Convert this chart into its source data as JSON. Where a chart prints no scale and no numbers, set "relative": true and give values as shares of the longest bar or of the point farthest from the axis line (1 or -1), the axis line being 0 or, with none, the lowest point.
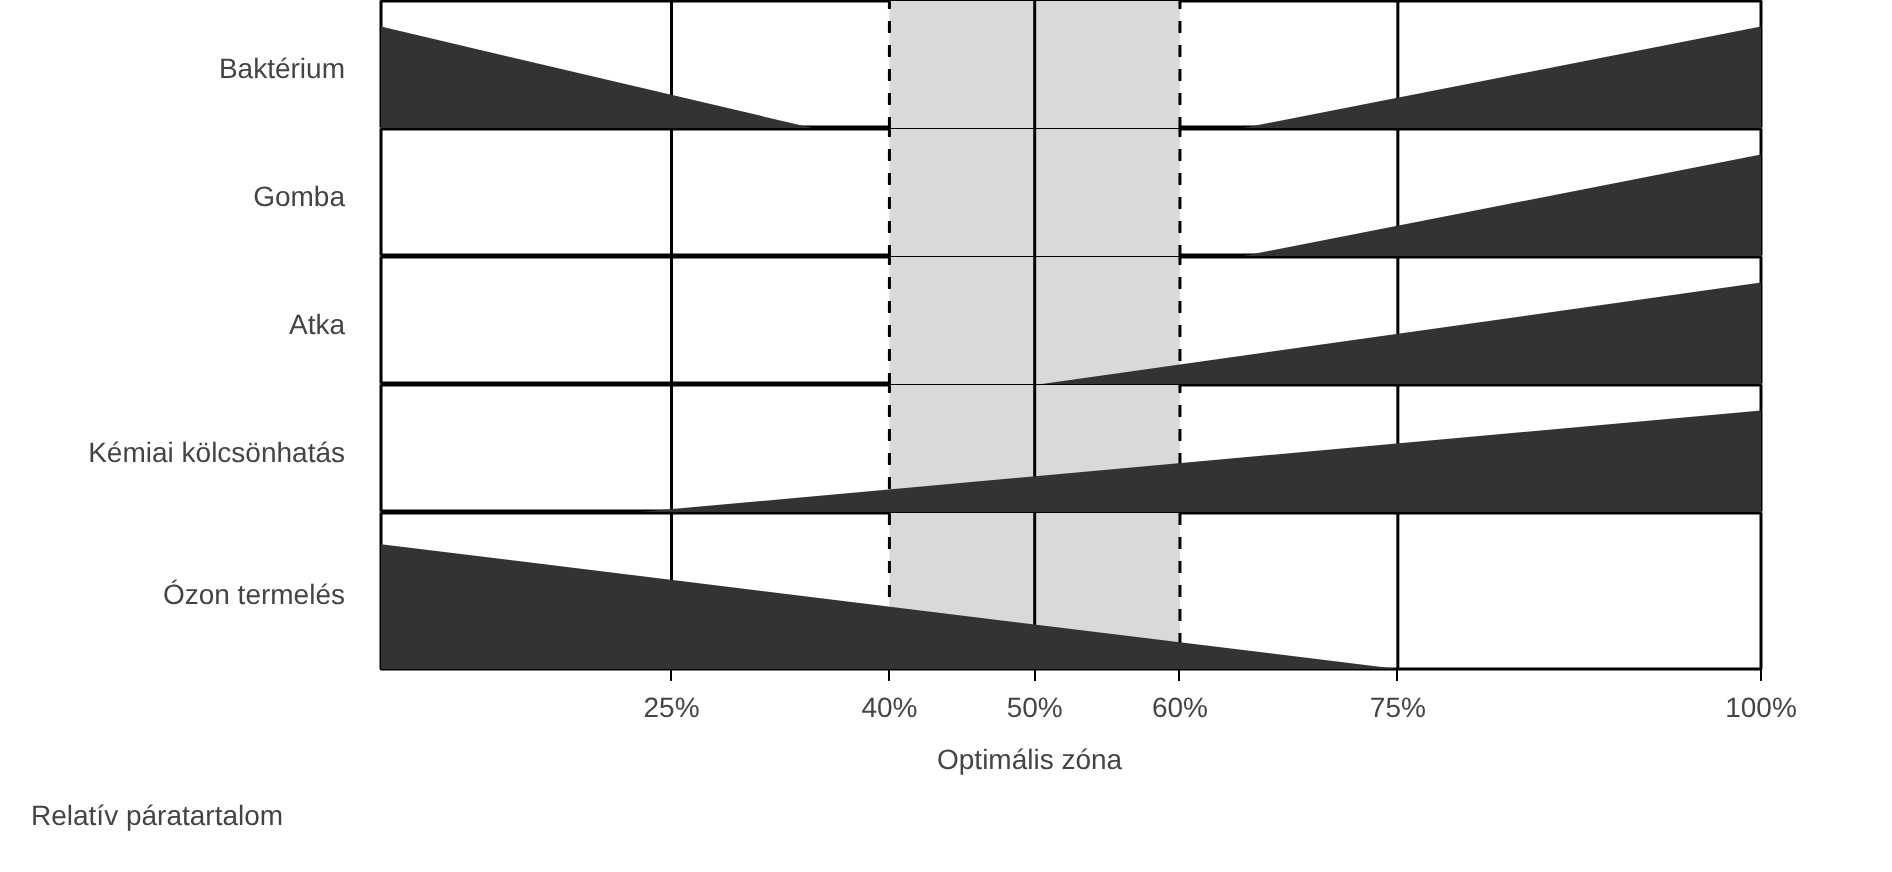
{
  "chart_data": [
    {
      "type": "area",
      "ylabel": "Baktérium",
      "relative": true,
      "x": [
        5,
        35,
        64,
        100
      ],
      "series": [
        {
          "color": "#333333",
          "values": [
            1,
            0,
            0,
            1
          ]
        }
      ],
      "xlim": [
        5,
        100
      ],
      "ref_lines": [
        {
          "axis": "x",
          "value": 25
        },
        {
          "axis": "x",
          "value": 50
        },
        {
          "axis": "x",
          "value": 75
        },
        {
          "axis": "x",
          "value": 40,
          "line_style": "dashed"
        },
        {
          "axis": "x",
          "value": 60,
          "line_style": "dashed"
        }
      ],
      "bands": [
        {
          "axis": "x",
          "from": 40,
          "to": 60,
          "color": "#d9d9d9"
        }
      ],
      "tick_labels": false,
      "grid": false
    },
    {
      "type": "area",
      "ylabel": "Gomba",
      "relative": true,
      "x": [
        5,
        64,
        100
      ],
      "series": [
        {
          "color": "#333333",
          "values": [
            0,
            0,
            1
          ]
        }
      ],
      "xlim": [
        5,
        100
      ],
      "ref_lines": [
        {
          "axis": "x",
          "value": 25
        },
        {
          "axis": "x",
          "value": 50
        },
        {
          "axis": "x",
          "value": 75
        },
        {
          "axis": "x",
          "value": 40,
          "line_style": "dashed"
        },
        {
          "axis": "x",
          "value": 60,
          "line_style": "dashed"
        }
      ],
      "bands": [
        {
          "axis": "x",
          "from": 40,
          "to": 60,
          "color": "#d9d9d9"
        }
      ],
      "tick_labels": false,
      "grid": false
    },
    {
      "type": "area",
      "ylabel": "Atka",
      "relative": true,
      "x": [
        5,
        50,
        100
      ],
      "series": [
        {
          "color": "#333333",
          "values": [
            0,
            0,
            1
          ]
        }
      ],
      "xlim": [
        5,
        100
      ],
      "ref_lines": [
        {
          "axis": "x",
          "value": 25
        },
        {
          "axis": "x",
          "value": 50
        },
        {
          "axis": "x",
          "value": 75
        },
        {
          "axis": "x",
          "value": 40,
          "line_style": "dashed"
        },
        {
          "axis": "x",
          "value": 60,
          "line_style": "dashed"
        }
      ],
      "bands": [
        {
          "axis": "x",
          "from": 40,
          "to": 60,
          "color": "#d9d9d9"
        }
      ],
      "tick_labels": false,
      "grid": false
    },
    {
      "type": "area",
      "ylabel": "Kémiai kölcsönhatás",
      "relative": true,
      "x": [
        5,
        22,
        100
      ],
      "series": [
        {
          "color": "#333333",
          "values": [
            0,
            0,
            1
          ]
        }
      ],
      "xlim": [
        5,
        100
      ],
      "ref_lines": [
        {
          "axis": "x",
          "value": 25
        },
        {
          "axis": "x",
          "value": 50
        },
        {
          "axis": "x",
          "value": 75
        },
        {
          "axis": "x",
          "value": 40,
          "line_style": "dashed"
        },
        {
          "axis": "x",
          "value": 60,
          "line_style": "dashed"
        }
      ],
      "bands": [
        {
          "axis": "x",
          "from": 40,
          "to": 60,
          "color": "#d9d9d9"
        }
      ],
      "tick_labels": false,
      "grid": false
    },
    {
      "type": "area",
      "ylabel": "Ózon termelés",
      "xlabel": "Relatív páratartalom",
      "relative": true,
      "x": [
        5,
        75,
        100
      ],
      "series": [
        {
          "color": "#333333",
          "values": [
            1,
            0,
            0
          ]
        }
      ],
      "xlim": [
        5,
        100
      ],
      "xticks": [
        {
          "value": 25,
          "label": "25%"
        },
        {
          "value": 40,
          "label": "40%"
        },
        {
          "value": 50,
          "label": "50%"
        },
        {
          "value": 60,
          "label": "60%"
        },
        {
          "value": 75,
          "label": "75%"
        },
        {
          "value": 100,
          "label": "100%"
        }
      ],
      "ref_lines": [
        {
          "axis": "x",
          "value": 25
        },
        {
          "axis": "x",
          "value": 50
        },
        {
          "axis": "x",
          "value": 75
        },
        {
          "axis": "x",
          "value": 40,
          "line_style": "dashed"
        },
        {
          "axis": "x",
          "value": 60,
          "line_style": "dashed"
        }
      ],
      "bands": [
        {
          "axis": "x",
          "from": 40,
          "to": 60,
          "color": "#d9d9d9",
          "label": "Optimális zóna"
        }
      ],
      "tick_labels": "x",
      "grid": false
    }
  ]
}
